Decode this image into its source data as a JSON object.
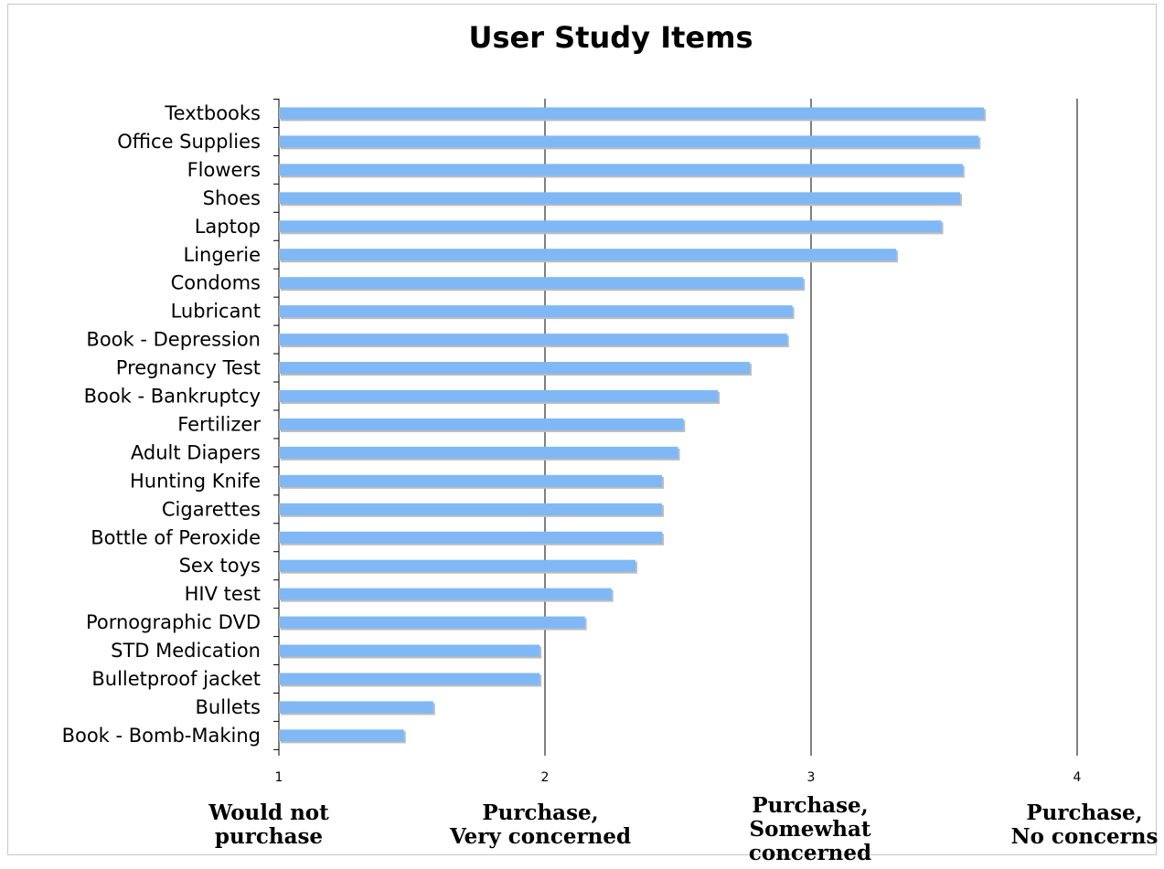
{
  "chart_data": {
    "type": "bar",
    "orientation": "horizontal",
    "title": "User Study Items",
    "xlabel": "",
    "ylabel": "",
    "xlim": [
      1,
      4
    ],
    "xticks": [
      1,
      2,
      3,
      4
    ],
    "grid": "vertical major",
    "legend": "none",
    "categories": [
      "Textbooks",
      "Office Supplies",
      "Flowers",
      "Shoes",
      "Laptop",
      "Lingerie",
      "Condoms",
      "Lubricant",
      "Book - Depression",
      "Pregnancy Test",
      "Book - Bankruptcy",
      "Fertilizer",
      "Adult Diapers",
      "Hunting Knife",
      "Cigarettes",
      "Bottle of Peroxide",
      "Sex toys",
      "HIV test",
      "Pornographic DVD",
      "STD Medication",
      "Bulletproof jacket",
      "Bullets",
      "Book - Bomb-Making"
    ],
    "values": [
      3.65,
      3.63,
      3.57,
      3.56,
      3.49,
      3.32,
      2.97,
      2.93,
      2.91,
      2.77,
      2.65,
      2.52,
      2.5,
      2.44,
      2.44,
      2.44,
      2.34,
      2.25,
      2.15,
      1.98,
      1.98,
      1.58,
      1.47
    ],
    "bar_color": "#7fb8f5",
    "scale_labels": [
      {
        "value": 1,
        "lines": [
          "Would not",
          "purchase"
        ]
      },
      {
        "value": 2,
        "lines": [
          "Purchase,",
          "Very concerned"
        ]
      },
      {
        "value": 3,
        "lines": [
          "Purchase,",
          "Somewhat",
          "concerned"
        ]
      },
      {
        "value": 4,
        "lines": [
          "Purchase,",
          "No concerns"
        ]
      }
    ]
  }
}
